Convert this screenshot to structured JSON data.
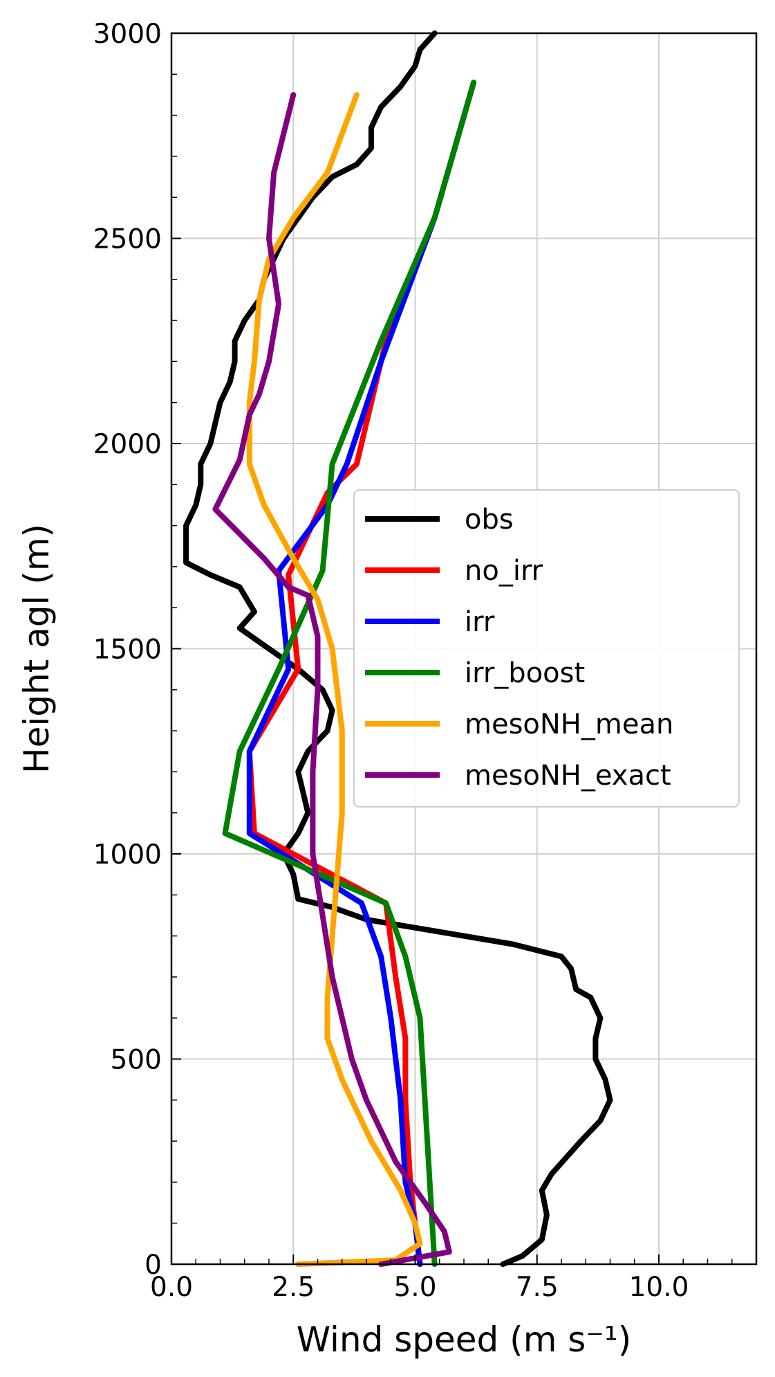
{
  "chart_data": {
    "type": "line",
    "xlabel": "Wind speed (m s⁻¹)",
    "ylabel": "Height agl (m)",
    "xlim": [
      0,
      12
    ],
    "ylim": [
      0,
      3000
    ],
    "x_ticks": [
      {
        "value": 0,
        "label": "0.0"
      },
      {
        "value": 2.5,
        "label": "2.5"
      },
      {
        "value": 5,
        "label": "5.0"
      },
      {
        "value": 7.5,
        "label": "7.5"
      },
      {
        "value": 10,
        "label": "10.0"
      }
    ],
    "y_ticks": [
      {
        "value": 0,
        "label": "0"
      },
      {
        "value": 500,
        "label": "500"
      },
      {
        "value": 1000,
        "label": "1000"
      },
      {
        "value": 1500,
        "label": "1500"
      },
      {
        "value": 2000,
        "label": "2000"
      },
      {
        "value": 2500,
        "label": "2500"
      },
      {
        "value": 3000,
        "label": "3000"
      }
    ],
    "x_minor_step": 0.5,
    "y_minor_step": 100,
    "grid": true,
    "legend_position": "center-right",
    "series": [
      {
        "name": "obs",
        "color": "#000000",
        "points": [
          [
            6.8,
            0
          ],
          [
            7.2,
            20
          ],
          [
            7.6,
            60
          ],
          [
            7.7,
            120
          ],
          [
            7.6,
            180
          ],
          [
            7.8,
            220
          ],
          [
            8.4,
            300
          ],
          [
            8.8,
            350
          ],
          [
            9.0,
            400
          ],
          [
            8.9,
            450
          ],
          [
            8.7,
            500
          ],
          [
            8.7,
            550
          ],
          [
            8.8,
            600
          ],
          [
            8.6,
            650
          ],
          [
            8.3,
            670
          ],
          [
            8.2,
            720
          ],
          [
            8.0,
            750
          ],
          [
            7.0,
            780
          ],
          [
            5.5,
            810
          ],
          [
            4.0,
            840
          ],
          [
            3.3,
            870
          ],
          [
            2.6,
            890
          ],
          [
            2.5,
            950
          ],
          [
            2.3,
            1000
          ],
          [
            2.6,
            1050
          ],
          [
            2.8,
            1100
          ],
          [
            2.7,
            1150
          ],
          [
            2.6,
            1200
          ],
          [
            2.8,
            1250
          ],
          [
            3.2,
            1300
          ],
          [
            3.3,
            1350
          ],
          [
            3.1,
            1400
          ],
          [
            2.6,
            1450
          ],
          [
            2.0,
            1500
          ],
          [
            1.4,
            1550
          ],
          [
            1.7,
            1590
          ],
          [
            1.4,
            1650
          ],
          [
            0.8,
            1680
          ],
          [
            0.3,
            1710
          ],
          [
            0.3,
            1760
          ],
          [
            0.3,
            1800
          ],
          [
            0.5,
            1850
          ],
          [
            0.6,
            1900
          ],
          [
            0.6,
            1950
          ],
          [
            0.8,
            2000
          ],
          [
            0.9,
            2050
          ],
          [
            1.0,
            2100
          ],
          [
            1.2,
            2150
          ],
          [
            1.3,
            2200
          ],
          [
            1.3,
            2250
          ],
          [
            1.5,
            2300
          ],
          [
            1.8,
            2350
          ],
          [
            1.9,
            2400
          ],
          [
            2.1,
            2450
          ],
          [
            2.3,
            2500
          ],
          [
            2.6,
            2550
          ],
          [
            2.9,
            2600
          ],
          [
            3.3,
            2650
          ],
          [
            3.8,
            2680
          ],
          [
            4.1,
            2720
          ],
          [
            4.1,
            2770
          ],
          [
            4.3,
            2820
          ],
          [
            4.7,
            2870
          ],
          [
            5.0,
            2920
          ],
          [
            5.1,
            2960
          ],
          [
            5.4,
            3000
          ]
        ]
      },
      {
        "name": "no_irr",
        "color": "#ff0000",
        "points": [
          [
            5.1,
            0
          ],
          [
            5.0,
            100
          ],
          [
            4.9,
            200
          ],
          [
            4.8,
            400
          ],
          [
            4.8,
            550
          ],
          [
            4.6,
            700
          ],
          [
            4.4,
            880
          ],
          [
            1.7,
            1050
          ],
          [
            1.6,
            1250
          ],
          [
            2.6,
            1450
          ],
          [
            2.4,
            1680
          ],
          [
            3.2,
            1880
          ],
          [
            3.8,
            1950
          ],
          [
            4.4,
            2250
          ],
          [
            5.4,
            2550
          ],
          [
            6.2,
            2880
          ]
        ]
      },
      {
        "name": "irr",
        "color": "#0000ff",
        "points": [
          [
            5.1,
            0
          ],
          [
            5.0,
            100
          ],
          [
            4.8,
            200
          ],
          [
            4.7,
            400
          ],
          [
            4.5,
            600
          ],
          [
            4.3,
            750
          ],
          [
            3.9,
            880
          ],
          [
            1.6,
            1050
          ],
          [
            1.6,
            1250
          ],
          [
            2.4,
            1450
          ],
          [
            2.2,
            1690
          ],
          [
            3.2,
            1850
          ],
          [
            3.6,
            1950
          ],
          [
            4.3,
            2200
          ],
          [
            5.4,
            2550
          ],
          [
            6.2,
            2880
          ]
        ]
      },
      {
        "name": "irr_boost",
        "color": "#008000",
        "points": [
          [
            5.4,
            0
          ],
          [
            5.3,
            200
          ],
          [
            5.2,
            400
          ],
          [
            5.1,
            600
          ],
          [
            4.8,
            750
          ],
          [
            4.4,
            880
          ],
          [
            1.1,
            1050
          ],
          [
            1.4,
            1250
          ],
          [
            2.2,
            1450
          ],
          [
            3.1,
            1690
          ],
          [
            3.3,
            1950
          ],
          [
            4.3,
            2250
          ],
          [
            5.4,
            2550
          ],
          [
            6.2,
            2880
          ]
        ]
      },
      {
        "name": "mesoNH_mean",
        "color": "#ffa500",
        "points": [
          [
            2.6,
            0
          ],
          [
            4.6,
            10
          ],
          [
            5.1,
            50
          ],
          [
            5.0,
            100
          ],
          [
            4.7,
            180
          ],
          [
            4.1,
            300
          ],
          [
            3.5,
            450
          ],
          [
            3.2,
            550
          ],
          [
            3.2,
            650
          ],
          [
            3.3,
            800
          ],
          [
            3.4,
            950
          ],
          [
            3.5,
            1100
          ],
          [
            3.5,
            1300
          ],
          [
            3.3,
            1500
          ],
          [
            3.0,
            1620
          ],
          [
            2.5,
            1720
          ],
          [
            1.9,
            1850
          ],
          [
            1.6,
            1950
          ],
          [
            1.6,
            2100
          ],
          [
            1.7,
            2200
          ],
          [
            1.8,
            2350
          ],
          [
            2.0,
            2450
          ],
          [
            2.5,
            2550
          ],
          [
            3.2,
            2660
          ],
          [
            3.8,
            2850
          ]
        ]
      },
      {
        "name": "mesoNH_exact",
        "color": "#800080",
        "points": [
          [
            4.3,
            0
          ],
          [
            5.7,
            30
          ],
          [
            5.6,
            80
          ],
          [
            5.2,
            150
          ],
          [
            4.6,
            250
          ],
          [
            4.0,
            400
          ],
          [
            3.7,
            500
          ],
          [
            3.5,
            600
          ],
          [
            3.3,
            700
          ],
          [
            3.1,
            850
          ],
          [
            2.9,
            1000
          ],
          [
            2.9,
            1200
          ],
          [
            3.0,
            1400
          ],
          [
            3.0,
            1530
          ],
          [
            2.8,
            1630
          ],
          [
            2.4,
            1650
          ],
          [
            1.9,
            1720
          ],
          [
            0.9,
            1840
          ],
          [
            1.4,
            1960
          ],
          [
            1.6,
            2070
          ],
          [
            1.8,
            2120
          ],
          [
            2.0,
            2200
          ],
          [
            2.2,
            2340
          ],
          [
            2.0,
            2500
          ],
          [
            2.1,
            2660
          ],
          [
            2.5,
            2850
          ]
        ]
      }
    ]
  }
}
